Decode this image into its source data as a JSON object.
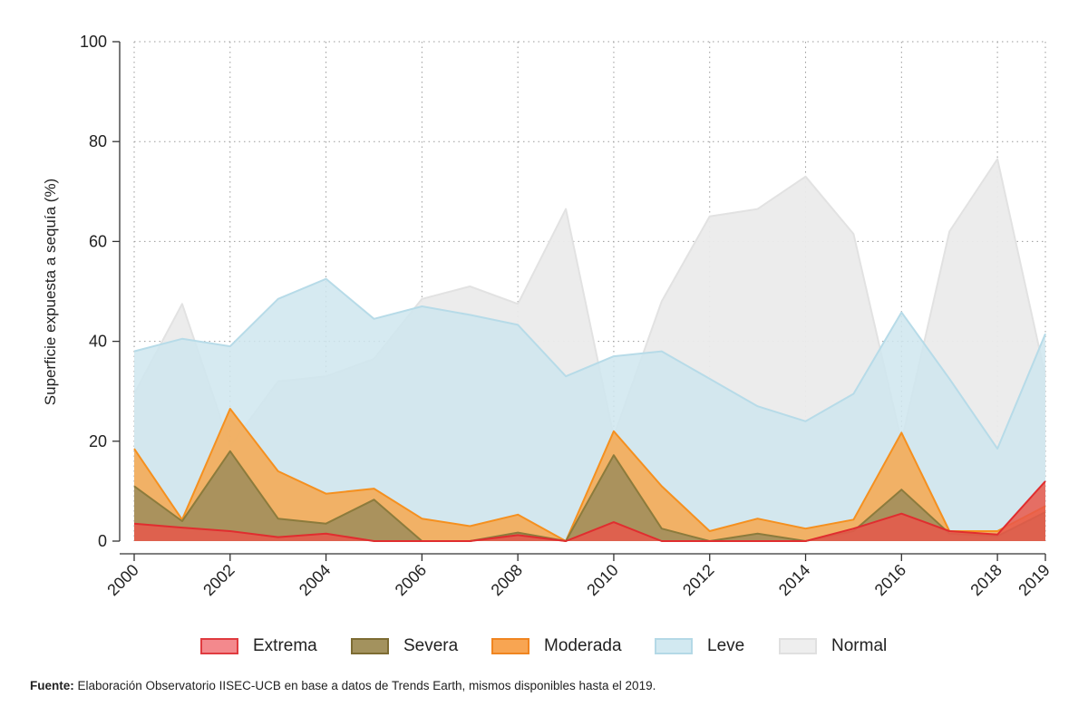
{
  "chart_data": {
    "type": "area",
    "title": "",
    "xlabel": "",
    "ylabel": "Superficie expuesta a sequía (%)",
    "ylim": [
      0,
      100
    ],
    "yticks": [
      0,
      20,
      40,
      60,
      80,
      100
    ],
    "ytick_labels": [
      "0",
      "20",
      "40",
      "60",
      "80",
      "100"
    ],
    "xticks": [
      2000,
      2002,
      2004,
      2006,
      2008,
      2010,
      2012,
      2014,
      2016,
      2018,
      2019
    ],
    "xtick_labels": [
      "2000",
      "2002",
      "2004",
      "2006",
      "2008",
      "2010",
      "2012",
      "2014",
      "2016",
      "2018",
      "2019"
    ],
    "x": [
      2000,
      2001,
      2002,
      2003,
      2004,
      2005,
      2006,
      2007,
      2008,
      2009,
      2010,
      2011,
      2012,
      2013,
      2014,
      2015,
      2016,
      2017,
      2018,
      2019
    ],
    "grid": true,
    "legend_position": "bottom",
    "series": [
      {
        "name": "Normal",
        "fill": "#ebebeb",
        "stroke": "#e2e2e2",
        "values": [
          29.5,
          47.5,
          19,
          32,
          33,
          36.5,
          48.5,
          51,
          47.5,
          66.5,
          21,
          48,
          65,
          66.5,
          73,
          61.5,
          20,
          62,
          76.5,
          33
        ]
      },
      {
        "name": "Leve",
        "fill": "#cfe6ee",
        "stroke": "#b7dbe8",
        "values": [
          38,
          40.5,
          39,
          48.5,
          52.5,
          44.5,
          47,
          45.3,
          43.3,
          33,
          37,
          38,
          32.5,
          27,
          24,
          29.5,
          45.8,
          32.5,
          18.5,
          41.5
        ]
      },
      {
        "name": "Moderada",
        "fill": "#f6a74e",
        "stroke": "#f5901f",
        "values": [
          18.5,
          4.3,
          26.5,
          14,
          9.5,
          10.5,
          4.5,
          3,
          5.3,
          0,
          22,
          11,
          2,
          4.5,
          2.5,
          4.3,
          21.7,
          2,
          2,
          7
        ]
      },
      {
        "name": "Severa",
        "fill": "#9d8d5c",
        "stroke": "#8c7b3c",
        "values": [
          11,
          4,
          18,
          4.5,
          3.5,
          8.3,
          0,
          0,
          1.7,
          0,
          17.2,
          2.5,
          0,
          1.5,
          0,
          2,
          10.3,
          1.5,
          1,
          5.8
        ]
      },
      {
        "name": "Extrema",
        "fill": "#e8584b",
        "stroke": "#e02d2f",
        "values": [
          3.5,
          2.7,
          2,
          0.8,
          1.5,
          0,
          0,
          0,
          1.2,
          0,
          3.8,
          0,
          0,
          0,
          0,
          2.5,
          5.5,
          2,
          1.3,
          12
        ]
      }
    ]
  },
  "legend": {
    "items": [
      {
        "label": "Extrema",
        "fill": "#f3898d",
        "border": "#e03b40"
      },
      {
        "label": "Severa",
        "fill": "#a3925e",
        "border": "#7d6c33"
      },
      {
        "label": "Moderada",
        "fill": "#f8a552",
        "border": "#f08520"
      },
      {
        "label": "Leve",
        "fill": "#d2e9f1",
        "border": "#b4d9e6"
      },
      {
        "label": "Normal",
        "fill": "#eeeeee",
        "border": "#e0e0e0"
      }
    ]
  },
  "source": {
    "prefix": "Fuente:",
    "text": " Elaboración Observatorio IISEC-UCB en base a datos de Trends Earth, mismos disponibles hasta el 2019."
  }
}
